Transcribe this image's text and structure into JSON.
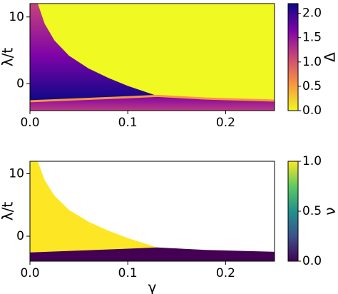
{
  "chart_data": [
    {
      "type": "heatmap",
      "ylabel": "λ/t",
      "xlim": [
        0,
        0.25
      ],
      "ylim": [
        -4,
        12
      ],
      "xticks": [
        {
          "value": 0,
          "label": "0.0"
        },
        {
          "value": 0.1,
          "label": "0.1"
        },
        {
          "value": 0.2,
          "label": "0.2"
        }
      ],
      "yticks": [
        10,
        0
      ],
      "boundary_x": [
        0.008,
        0.015,
        0.025,
        0.04,
        0.06,
        0.08,
        0.1,
        0.13
      ],
      "boundary": [
        12,
        9,
        6.5,
        4.2,
        2.3,
        0.9,
        -0.3,
        -1.8
      ],
      "band_x": [
        0,
        0.05,
        0.1,
        0.13,
        0.18,
        0.25
      ],
      "band": [
        -2.6,
        -2.3,
        -2.0,
        -1.8,
        -2.2,
        -2.5
      ],
      "colorbar": {
        "label": "Δ",
        "lim": [
          0,
          2.2
        ],
        "ticks": [
          {
            "value": 0,
            "label": "0.0"
          },
          {
            "value": 0.5,
            "label": "0.5"
          },
          {
            "value": 1,
            "label": "1.0"
          },
          {
            "value": 1.5,
            "label": "1.5"
          },
          {
            "value": 2,
            "label": "2.0"
          }
        ],
        "colormap": [
          "#f0f921",
          "#f89540",
          "#cc4778",
          "#7e03a8",
          "#0d0887"
        ]
      }
    },
    {
      "type": "heatmap",
      "ylabel": "λ/t",
      "xlabel": "γ",
      "xlim": [
        0,
        0.25
      ],
      "ylim": [
        -4,
        12
      ],
      "xticks": [
        {
          "value": 0,
          "label": "0.0"
        },
        {
          "value": 0.1,
          "label": "0.1"
        },
        {
          "value": 0.2,
          "label": "0.2"
        }
      ],
      "yticks": [
        10,
        0
      ],
      "boundary_x": [
        0.008,
        0.015,
        0.025,
        0.04,
        0.06,
        0.08,
        0.1,
        0.13
      ],
      "boundary": [
        12,
        9,
        6.5,
        4.2,
        2.3,
        0.9,
        -0.3,
        -1.8
      ],
      "band_x": [
        0,
        0.05,
        0.1,
        0.13,
        0.18,
        0.25
      ],
      "band": [
        -2.6,
        -2.3,
        -2.0,
        -1.8,
        -2.2,
        -2.5
      ],
      "colorbar": {
        "label": "ν",
        "lim": [
          0,
          1
        ],
        "ticks": [
          {
            "value": 0,
            "label": "0.0"
          },
          {
            "value": 0.5,
            "label": "0.5"
          },
          {
            "value": 1,
            "label": "1.0"
          }
        ],
        "colormap": [
          "#440154",
          "#3b528b",
          "#21918c",
          "#5ec962",
          "#fde725"
        ]
      }
    }
  ]
}
